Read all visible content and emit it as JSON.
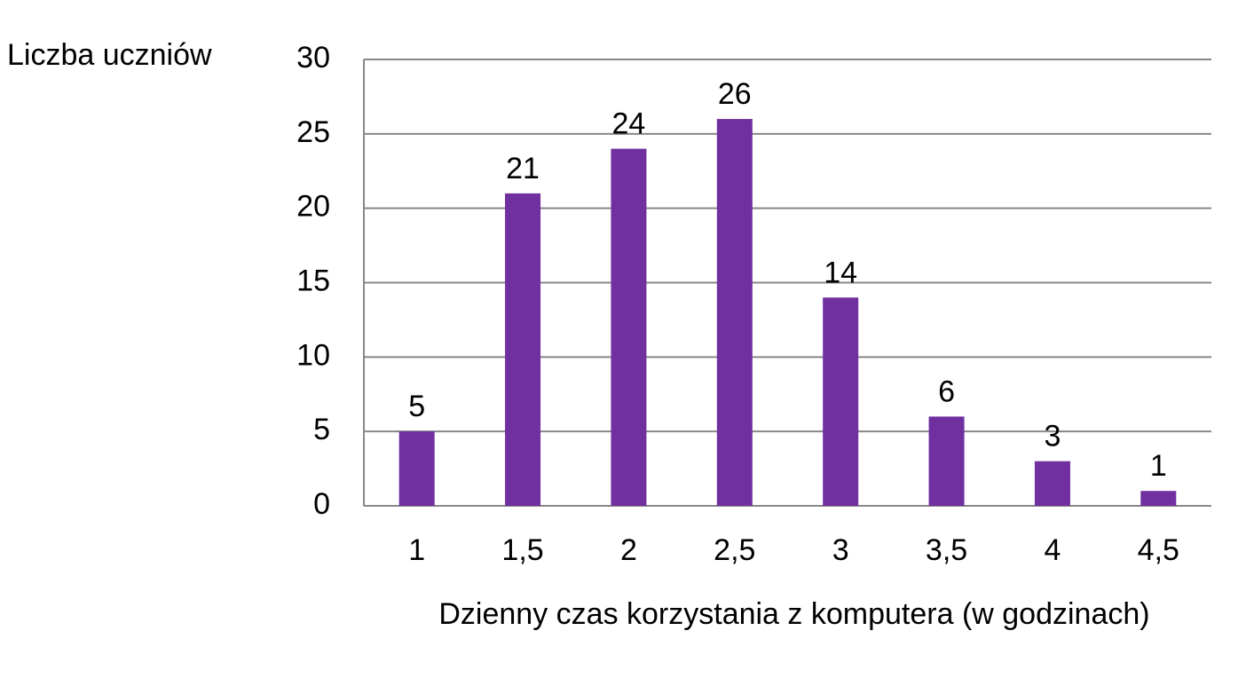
{
  "chart_data": {
    "type": "bar",
    "y_axis_title": "Liczba uczniów",
    "x_axis_title": "Dzienny czas korzystania z komputera (w godzinach)",
    "categories": [
      "1",
      "1,5",
      "2",
      "2,5",
      "3",
      "3,5",
      "4",
      "4,5"
    ],
    "values": [
      5,
      21,
      24,
      26,
      14,
      6,
      3,
      1
    ],
    "color": "#7030a0",
    "ylim": [
      0,
      30
    ],
    "yticks": [
      0,
      5,
      10,
      15,
      20,
      25,
      30
    ],
    "grid": true
  }
}
